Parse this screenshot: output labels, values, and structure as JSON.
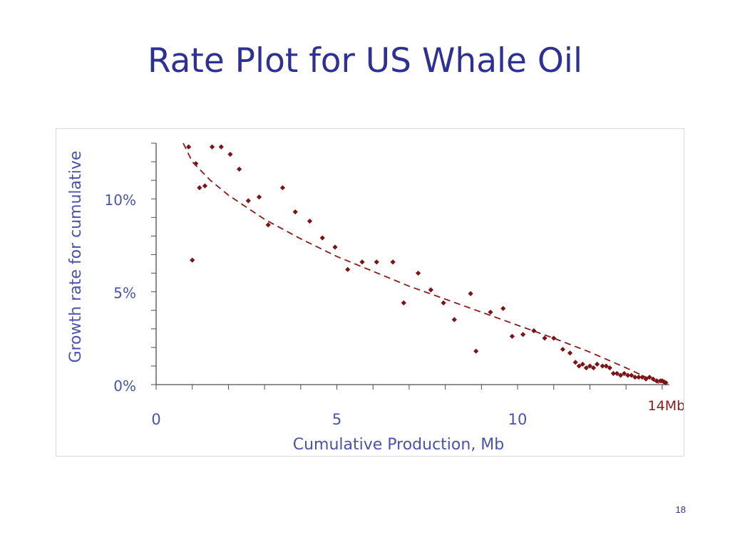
{
  "slide": {
    "title": "Rate Plot for US Whale Oil",
    "page_number": "18"
  },
  "colors": {
    "title": "#2e3192",
    "axis_text": "#4a53a8",
    "axis_line": "#4d4d4d",
    "data": "#7b1416",
    "annotation": "#8b1a1a"
  },
  "chart_data": {
    "type": "scatter",
    "title": "",
    "xlabel": "Cumulative Production,  Mb",
    "ylabel": "Growth rate for cumulative",
    "xlim": [
      0,
      14.2
    ],
    "ylim": [
      0,
      13
    ],
    "x_ticks": [
      {
        "value": 0,
        "label": "0"
      },
      {
        "value": 5,
        "label": "5"
      },
      {
        "value": 10,
        "label": "10"
      }
    ],
    "y_ticks": [
      {
        "value": 0,
        "label": "0%"
      },
      {
        "value": 5,
        "label": "5%"
      },
      {
        "value": 10,
        "label": "10%"
      }
    ],
    "grid": false,
    "annotations": [
      {
        "text": "14Mb",
        "x": 14.0,
        "y": 0
      }
    ],
    "series": [
      {
        "points": [
          [
            0.9,
            12.8
          ],
          [
            1.0,
            6.7
          ],
          [
            1.1,
            11.9
          ],
          [
            1.2,
            10.6
          ],
          [
            1.35,
            10.7
          ],
          [
            1.55,
            12.8
          ],
          [
            1.8,
            12.8
          ],
          [
            2.05,
            12.4
          ],
          [
            2.3,
            11.6
          ],
          [
            2.55,
            9.9
          ],
          [
            2.85,
            10.1
          ],
          [
            3.1,
            8.6
          ],
          [
            3.5,
            10.6
          ],
          [
            3.85,
            9.3
          ],
          [
            4.25,
            8.8
          ],
          [
            4.6,
            7.9
          ],
          [
            4.95,
            7.4
          ],
          [
            5.3,
            6.2
          ],
          [
            5.7,
            6.6
          ],
          [
            6.1,
            6.6
          ],
          [
            6.55,
            6.6
          ],
          [
            6.85,
            4.4
          ],
          [
            7.25,
            6.0
          ],
          [
            7.6,
            5.1
          ],
          [
            7.95,
            4.4
          ],
          [
            8.25,
            3.5
          ],
          [
            8.7,
            4.9
          ],
          [
            8.85,
            1.8
          ],
          [
            9.25,
            3.9
          ],
          [
            9.6,
            4.1
          ],
          [
            9.85,
            2.6
          ],
          [
            10.15,
            2.7
          ],
          [
            10.45,
            2.9
          ],
          [
            10.75,
            2.5
          ],
          [
            11.0,
            2.5
          ],
          [
            11.25,
            1.9
          ],
          [
            11.45,
            1.7
          ],
          [
            11.6,
            1.2
          ],
          [
            11.7,
            1.0
          ],
          [
            11.8,
            1.1
          ],
          [
            11.9,
            0.9
          ],
          [
            12.0,
            1.0
          ],
          [
            12.1,
            0.9
          ],
          [
            12.2,
            1.1
          ],
          [
            12.35,
            1.0
          ],
          [
            12.45,
            1.0
          ],
          [
            12.55,
            0.9
          ],
          [
            12.65,
            0.6
          ],
          [
            12.75,
            0.6
          ],
          [
            12.85,
            0.5
          ],
          [
            12.95,
            0.6
          ],
          [
            13.05,
            0.5
          ],
          [
            13.15,
            0.5
          ],
          [
            13.25,
            0.4
          ],
          [
            13.35,
            0.4
          ],
          [
            13.45,
            0.4
          ],
          [
            13.55,
            0.3
          ],
          [
            13.65,
            0.4
          ],
          [
            13.75,
            0.3
          ],
          [
            13.85,
            0.2
          ],
          [
            13.95,
            0.2
          ],
          [
            14.0,
            0.2
          ],
          [
            14.05,
            0.15
          ],
          [
            14.1,
            0.1
          ]
        ]
      },
      {
        "style": "dashed-trend",
        "points": [
          [
            0.75,
            13.0
          ],
          [
            1.0,
            12.0
          ],
          [
            1.5,
            11.0
          ],
          [
            2.0,
            10.2
          ],
          [
            3.0,
            8.9
          ],
          [
            4.0,
            7.85
          ],
          [
            5.0,
            6.9
          ],
          [
            6.0,
            6.1
          ],
          [
            7.0,
            5.3
          ],
          [
            8.0,
            4.6
          ],
          [
            9.0,
            3.9
          ],
          [
            10.0,
            3.2
          ],
          [
            11.0,
            2.5
          ],
          [
            12.0,
            1.75
          ],
          [
            13.0,
            0.9
          ],
          [
            13.5,
            0.45
          ],
          [
            14.0,
            0.0
          ]
        ]
      }
    ]
  }
}
